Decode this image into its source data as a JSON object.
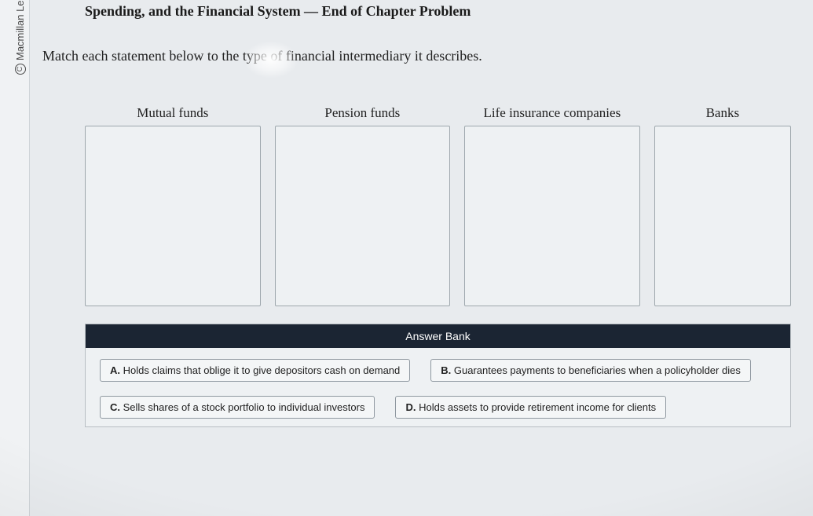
{
  "copyright": "Macmillan Learni",
  "header": {
    "title": "Spending, and the Financial System — End of Chapter Problem"
  },
  "instruction": "Match each statement below to the type of financial intermediary it describes.",
  "dropzones": [
    {
      "label": "Mutual funds"
    },
    {
      "label": "Pension funds"
    },
    {
      "label": "Life insurance companies"
    },
    {
      "label": "Banks"
    }
  ],
  "answer_bank": {
    "title": "Answer Bank",
    "options": [
      {
        "letter": "A.",
        "text": "Holds claims that oblige it to give depositors cash on demand"
      },
      {
        "letter": "B.",
        "text": "Guarantees payments to beneficiaries when a policyholder dies"
      },
      {
        "letter": "C.",
        "text": "Sells shares of a stock portfolio to individual investors"
      },
      {
        "letter": "D.",
        "text": "Holds assets to provide retirement income for clients"
      }
    ]
  }
}
